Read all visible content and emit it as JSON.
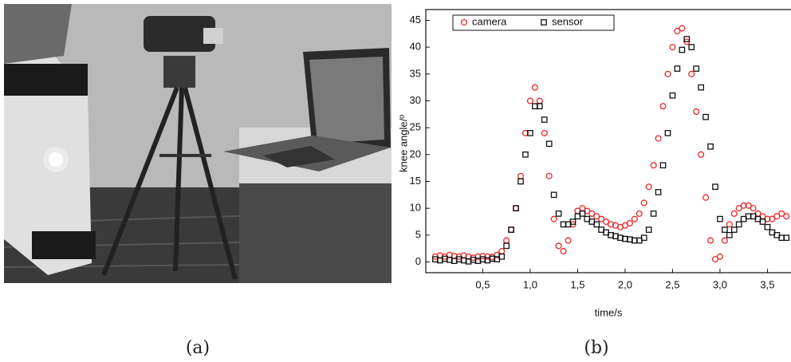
{
  "captions": [
    "(a)",
    "(b)"
  ],
  "chart_data": {
    "type": "scatter",
    "x_label": "time/s",
    "y_label": "knee angle/º",
    "x": [
      0,
      0.05,
      0.1,
      0.15,
      0.2,
      0.25,
      0.3,
      0.35,
      0.4,
      0.45,
      0.5,
      0.55,
      0.6,
      0.65,
      0.7,
      0.75,
      0.8,
      0.85,
      0.9,
      0.95,
      1,
      1.05,
      1.1,
      1.15,
      1.2,
      1.25,
      1.3,
      1.35,
      1.4,
      1.45,
      1.5,
      1.55,
      1.6,
      1.65,
      1.7,
      1.75,
      1.8,
      1.85,
      1.9,
      1.95,
      2,
      2.05,
      2.1,
      2.15,
      2.2,
      2.25,
      2.3,
      2.35,
      2.4,
      2.45,
      2.5,
      2.55,
      2.6,
      2.65,
      2.7,
      2.75,
      2.8,
      2.85,
      2.9,
      2.95,
      3,
      3.05,
      3.1,
      3.15,
      3.2,
      3.25,
      3.3,
      3.35,
      3.4,
      3.45,
      3.5,
      3.55,
      3.6,
      3.65,
      3.7
    ],
    "series": [
      {
        "name": "camera",
        "color": "#e8282a",
        "marker": "circle",
        "values": [
          1,
          1.2,
          1,
          1.3,
          1.1,
          1,
          1.2,
          1,
          0.8,
          1,
          1.1,
          1,
          0.9,
          1.3,
          2,
          4,
          6,
          10,
          16,
          24,
          30,
          32.5,
          30,
          24,
          16,
          8,
          3,
          2,
          4,
          7,
          9.5,
          10,
          9.5,
          9,
          8.5,
          8,
          7.5,
          7,
          6.8,
          6.5,
          6.8,
          7.2,
          8,
          9,
          11,
          14,
          18,
          23,
          29,
          35,
          40,
          43,
          43.5,
          41,
          35,
          28,
          20,
          12,
          4,
          0.5,
          1,
          4,
          7,
          9,
          10,
          10.5,
          10.5,
          10,
          9,
          8.5,
          8,
          8,
          8.5,
          9,
          8.5
        ]
      },
      {
        "name": "sensor",
        "color": "#111111",
        "marker": "square",
        "values": [
          0.5,
          0.3,
          0.6,
          0.4,
          0.2,
          0.5,
          0.3,
          0.1,
          0.4,
          0.2,
          0.5,
          0.3,
          0.6,
          0.5,
          1,
          3,
          6,
          10,
          15,
          20,
          24,
          29,
          29,
          26.5,
          22,
          12.5,
          9,
          7,
          7,
          7.5,
          8.5,
          9,
          8,
          7.5,
          7,
          6,
          5.5,
          5,
          4.8,
          4.5,
          4.3,
          4.2,
          4,
          4,
          4.5,
          6,
          9,
          13,
          18,
          24,
          31,
          36,
          39.5,
          41.5,
          40,
          36,
          32.5,
          27,
          21.5,
          14,
          8,
          6,
          5,
          6,
          7,
          8,
          8.5,
          8.5,
          8,
          7.5,
          6.5,
          5.5,
          5,
          4.5,
          4.5
        ]
      }
    ],
    "xlim": [
      -0.1,
      3.74
    ],
    "ylim": [
      -2,
      47
    ],
    "xticks": [
      {
        "value": 0.5,
        "label": "0,5"
      },
      {
        "value": 1,
        "label": "1,0"
      },
      {
        "value": 1.5,
        "label": "1,5"
      },
      {
        "value": 2,
        "label": "2,0"
      },
      {
        "value": 2.5,
        "label": "2,5"
      },
      {
        "value": 3,
        "label": "3,0"
      },
      {
        "value": 3.5,
        "label": "3,5"
      }
    ],
    "yticks": [
      0,
      5,
      10,
      15,
      20,
      25,
      30,
      35,
      40,
      45
    ],
    "legend": "upper left"
  }
}
